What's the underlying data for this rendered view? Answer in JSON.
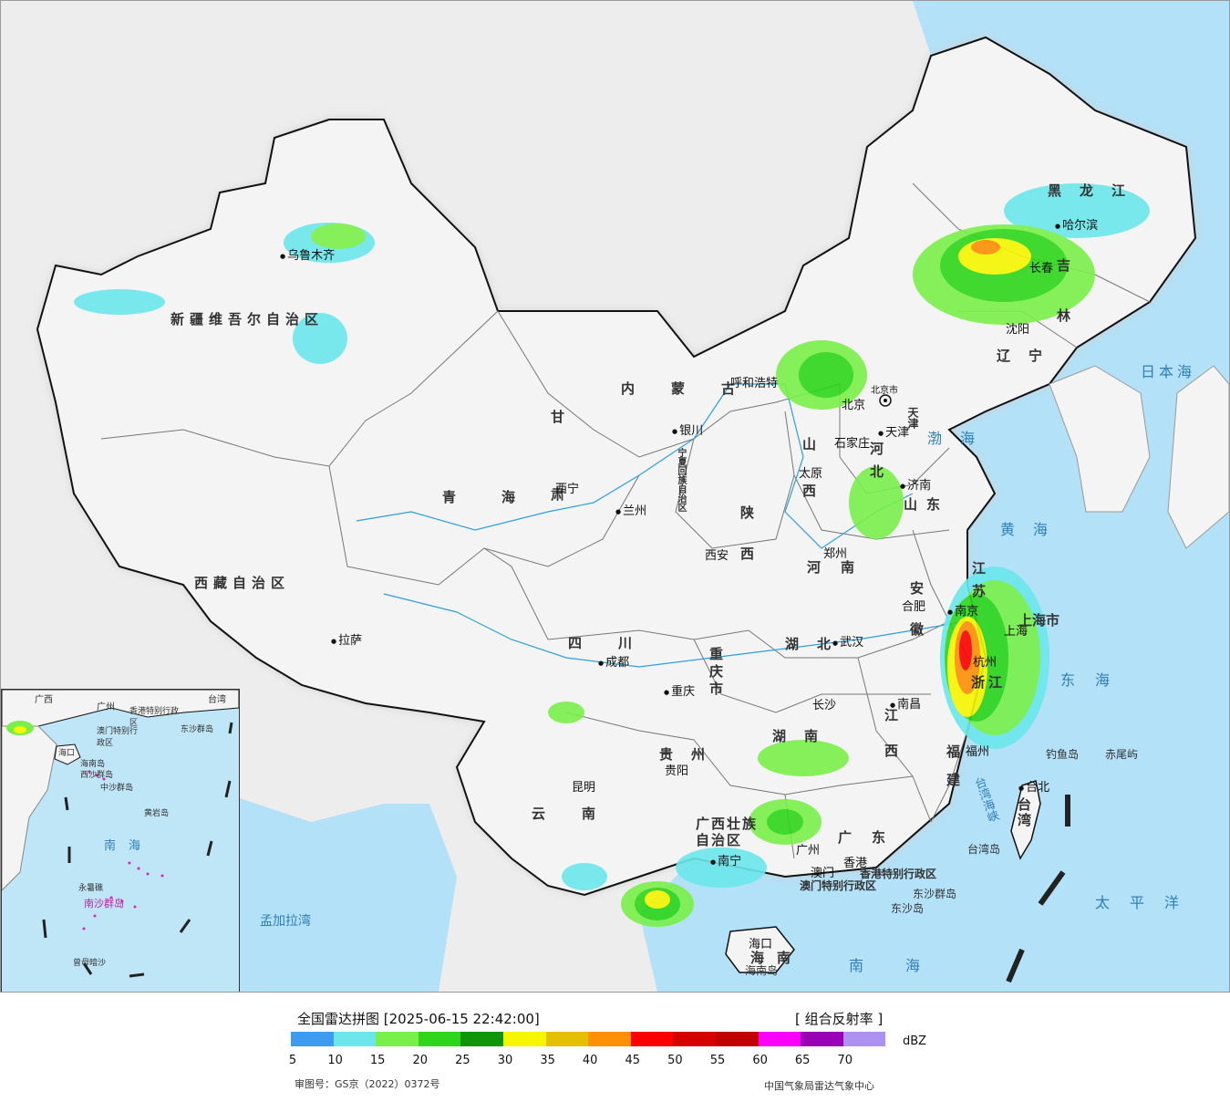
{
  "legend": {
    "title": "全国雷达拼图 [2025-06-15 22:42:00]",
    "product": "[ 组合反射率 ]",
    "unit": "dBZ",
    "ticks": [
      "5",
      "10",
      "15",
      "20",
      "25",
      "30",
      "35",
      "40",
      "45",
      "50",
      "55",
      "60",
      "65",
      "70"
    ],
    "colors": [
      "#3d9bf0",
      "#6be7ec",
      "#79f04a",
      "#2ed51b",
      "#109509",
      "#f6f600",
      "#e5c000",
      "#fd9005",
      "#fc0000",
      "#d50000",
      "#c10000",
      "#fb00fb",
      "#9a00b6",
      "#ad90f0"
    ],
    "approval": "审图号：GS京（2022）0372号",
    "agency": "中国气象局雷达气象中心"
  },
  "provinces": [
    {
      "name": "新疆维吾尔自治区"
    },
    {
      "name": "西藏自治区"
    },
    {
      "name": "青海"
    },
    {
      "name": "甘肃"
    },
    {
      "name": "内蒙古"
    },
    {
      "name": "黑龙江"
    },
    {
      "name": "吉林"
    },
    {
      "name": "辽宁"
    },
    {
      "name": "河北"
    },
    {
      "name": "山西"
    },
    {
      "name": "山东"
    },
    {
      "name": "河南"
    },
    {
      "name": "陕西"
    },
    {
      "name": "四川"
    },
    {
      "name": "重庆市"
    },
    {
      "name": "湖北"
    },
    {
      "name": "安徽"
    },
    {
      "name": "江苏"
    },
    {
      "name": "上海市"
    },
    {
      "name": "浙江"
    },
    {
      "name": "江西"
    },
    {
      "name": "湖南"
    },
    {
      "name": "贵州"
    },
    {
      "name": "云南"
    },
    {
      "name": "广西壮族自治区"
    },
    {
      "name": "广东"
    },
    {
      "name": "福建"
    },
    {
      "name": "海南"
    },
    {
      "name": "台湾"
    },
    {
      "name": "宁夏回族自治区"
    },
    {
      "name": "天津"
    }
  ],
  "cities": [
    {
      "name": "乌鲁木齐"
    },
    {
      "name": "拉萨"
    },
    {
      "name": "西宁"
    },
    {
      "name": "兰州"
    },
    {
      "name": "银川"
    },
    {
      "name": "呼和浩特"
    },
    {
      "name": "哈尔滨"
    },
    {
      "name": "长春"
    },
    {
      "name": "沈阳"
    },
    {
      "name": "北京"
    },
    {
      "name": "北京市"
    },
    {
      "name": "天津"
    },
    {
      "name": "石家庄"
    },
    {
      "name": "太原"
    },
    {
      "name": "济南"
    },
    {
      "name": "郑州"
    },
    {
      "name": "西安"
    },
    {
      "name": "成都"
    },
    {
      "name": "重庆"
    },
    {
      "name": "武汉"
    },
    {
      "name": "合肥"
    },
    {
      "name": "南京"
    },
    {
      "name": "上海"
    },
    {
      "name": "杭州"
    },
    {
      "name": "南昌"
    },
    {
      "name": "长沙"
    },
    {
      "name": "贵阳"
    },
    {
      "name": "昆明"
    },
    {
      "name": "南宁"
    },
    {
      "name": "广州"
    },
    {
      "name": "香港"
    },
    {
      "name": "澳门"
    },
    {
      "name": "福州"
    },
    {
      "name": "台北"
    },
    {
      "name": "海口"
    }
  ],
  "seas": [
    {
      "name": "日本海"
    },
    {
      "name": "渤海"
    },
    {
      "name": "黄海"
    },
    {
      "name": "东海"
    },
    {
      "name": "太平洋"
    },
    {
      "name": "南海"
    },
    {
      "name": "台湾海峡"
    },
    {
      "name": "孟加拉湾"
    }
  ],
  "islands": [
    {
      "name": "钓鱼岛"
    },
    {
      "name": "赤尾屿"
    },
    {
      "name": "台湾岛"
    },
    {
      "name": "东沙群岛"
    },
    {
      "name": "东沙岛"
    },
    {
      "name": "海南岛"
    },
    {
      "name": "香港特别行政区"
    },
    {
      "name": "澳门特别行政区"
    }
  ],
  "inset": {
    "labels": [
      "广西",
      "广州",
      "香港特别行政区",
      "澳门特别行政区",
      "东沙群岛",
      "台湾",
      "海口",
      "海南岛",
      "西沙群岛",
      "中沙群岛",
      "黄岩岛",
      "南海",
      "永暑礁",
      "南沙群岛",
      "曾母暗沙"
    ]
  }
}
